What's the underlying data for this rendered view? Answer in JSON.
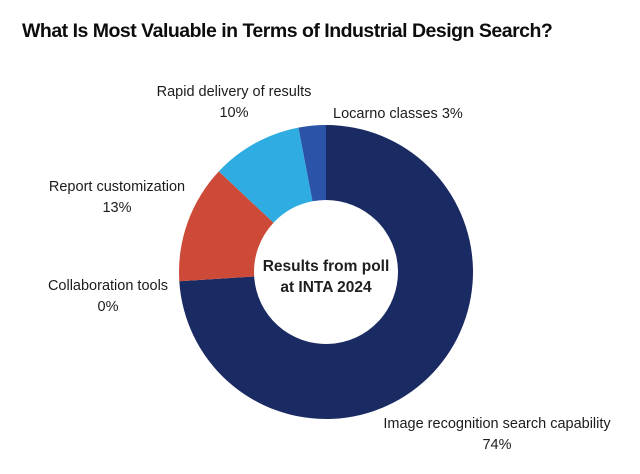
{
  "page": {
    "background_color": "#FFFFFF"
  },
  "chart_data": {
    "type": "pie",
    "subtype": "donut",
    "title": "What Is Most Valuable in Terms of Industrial Design Search?",
    "center_text": {
      "line1": "Results from poll",
      "line2": "at INTA 2024"
    },
    "start_angle": "top",
    "direction": "clockwise",
    "inner_radius_ratio": 0.49,
    "legend": "none",
    "label_style": "outside-text-callouts",
    "segments": [
      {
        "label": "Image recognition search capability",
        "value": 74,
        "pct_label": "74%",
        "color": "#1A2A62"
      },
      {
        "label": "Collaboration tools",
        "value": 0,
        "pct_label": "0%",
        "color": null
      },
      {
        "label": "Report customization",
        "value": 13,
        "pct_label": "13%",
        "color": "#CC4A37"
      },
      {
        "label": "Rapid delivery of results",
        "value": 10,
        "pct_label": "10%",
        "color": "#2FACE2"
      },
      {
        "label": "Locarno classes",
        "value": 3,
        "pct_label": "3%",
        "color": "#2B53A7"
      }
    ]
  }
}
